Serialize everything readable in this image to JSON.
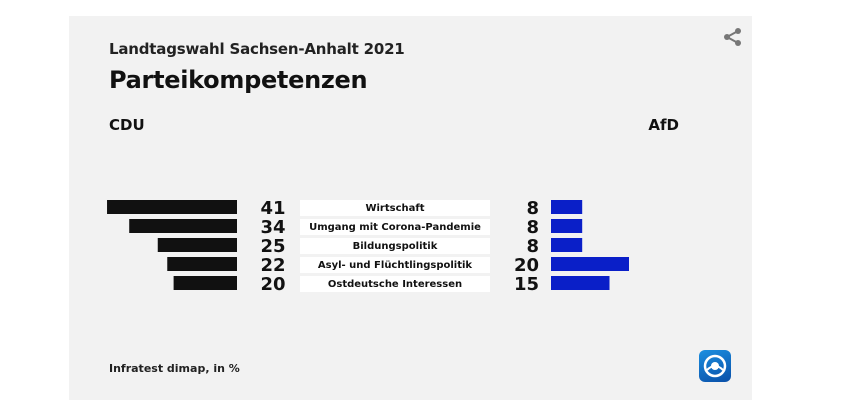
{
  "header": {
    "subtitle": "Landtagswahl Sachsen-Anhalt 2021",
    "title": "Parteikompetenzen"
  },
  "parties": {
    "left": "CDU",
    "right": "AfD"
  },
  "footer": {
    "source": "Infratest dimap, in %"
  },
  "icons": {
    "share": "share-icon",
    "logo": "tagesschau-logo-icon"
  },
  "colors": {
    "left_bar": "#111111",
    "right_bar": "#0a1fc8",
    "label_bg": "#ffffff",
    "card_bg": "#f2f2f2"
  },
  "chart_data": {
    "type": "bar",
    "categories": [
      "Wirtschaft",
      "Umgang mit Corona-Pandemie",
      "Bildungspolitik",
      "Asyl- und Flüchtlingspolitik",
      "Ostdeutsche Interessen"
    ],
    "series": [
      {
        "name": "CDU",
        "values": [
          41,
          34,
          25,
          22,
          20
        ]
      },
      {
        "name": "AfD",
        "values": [
          8,
          8,
          8,
          20,
          15
        ]
      }
    ]
  }
}
